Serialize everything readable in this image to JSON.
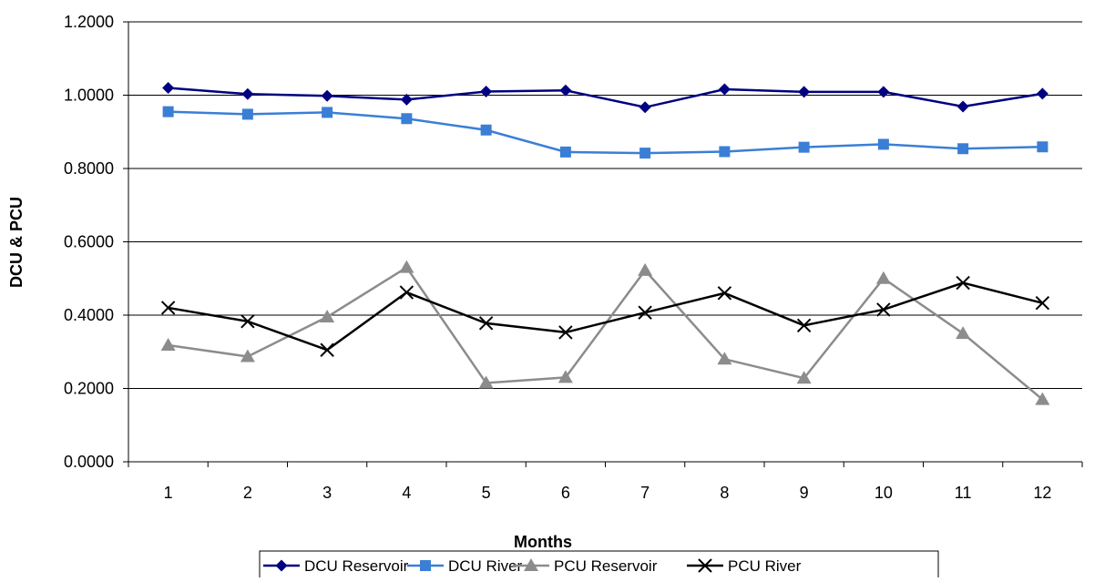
{
  "chart_data": {
    "type": "line",
    "title": "",
    "xlabel": "Months",
    "ylabel": "DCU & PCU",
    "categories": [
      "1",
      "2",
      "3",
      "4",
      "5",
      "6",
      "7",
      "8",
      "9",
      "10",
      "11",
      "12"
    ],
    "ylim": [
      0,
      1.2
    ],
    "yticks": [
      "0.0000",
      "0.2000",
      "0.4000",
      "0.6000",
      "0.8000",
      "1.0000",
      "1.2000"
    ],
    "ytick_values": [
      0,
      0.2,
      0.4,
      0.6,
      0.8,
      1.0,
      1.2
    ],
    "grid": "horizontal major",
    "legend_position": "bottom",
    "series": [
      {
        "name": "DCU Reservoir",
        "color": "#000080",
        "marker": "diamond",
        "values": [
          1.02,
          1.003,
          0.998,
          0.988,
          1.01,
          1.013,
          0.967,
          1.016,
          1.009,
          1.009,
          0.969,
          1.004
        ]
      },
      {
        "name": "DCU River",
        "color": "#3a7fd5",
        "marker": "square",
        "values": [
          0.955,
          0.948,
          0.953,
          0.936,
          0.905,
          0.845,
          0.842,
          0.846,
          0.858,
          0.866,
          0.854,
          0.859
        ]
      },
      {
        "name": "PCU Reservoir",
        "color": "#8c8c8c",
        "marker": "triangle",
        "values": [
          0.318,
          0.287,
          0.395,
          0.53,
          0.215,
          0.23,
          0.522,
          0.28,
          0.228,
          0.5,
          0.35,
          0.17
        ]
      },
      {
        "name": "PCU River",
        "color": "#000000",
        "marker": "x",
        "values": [
          0.42,
          0.383,
          0.305,
          0.462,
          0.378,
          0.353,
          0.407,
          0.46,
          0.372,
          0.415,
          0.488,
          0.433
        ]
      }
    ]
  }
}
